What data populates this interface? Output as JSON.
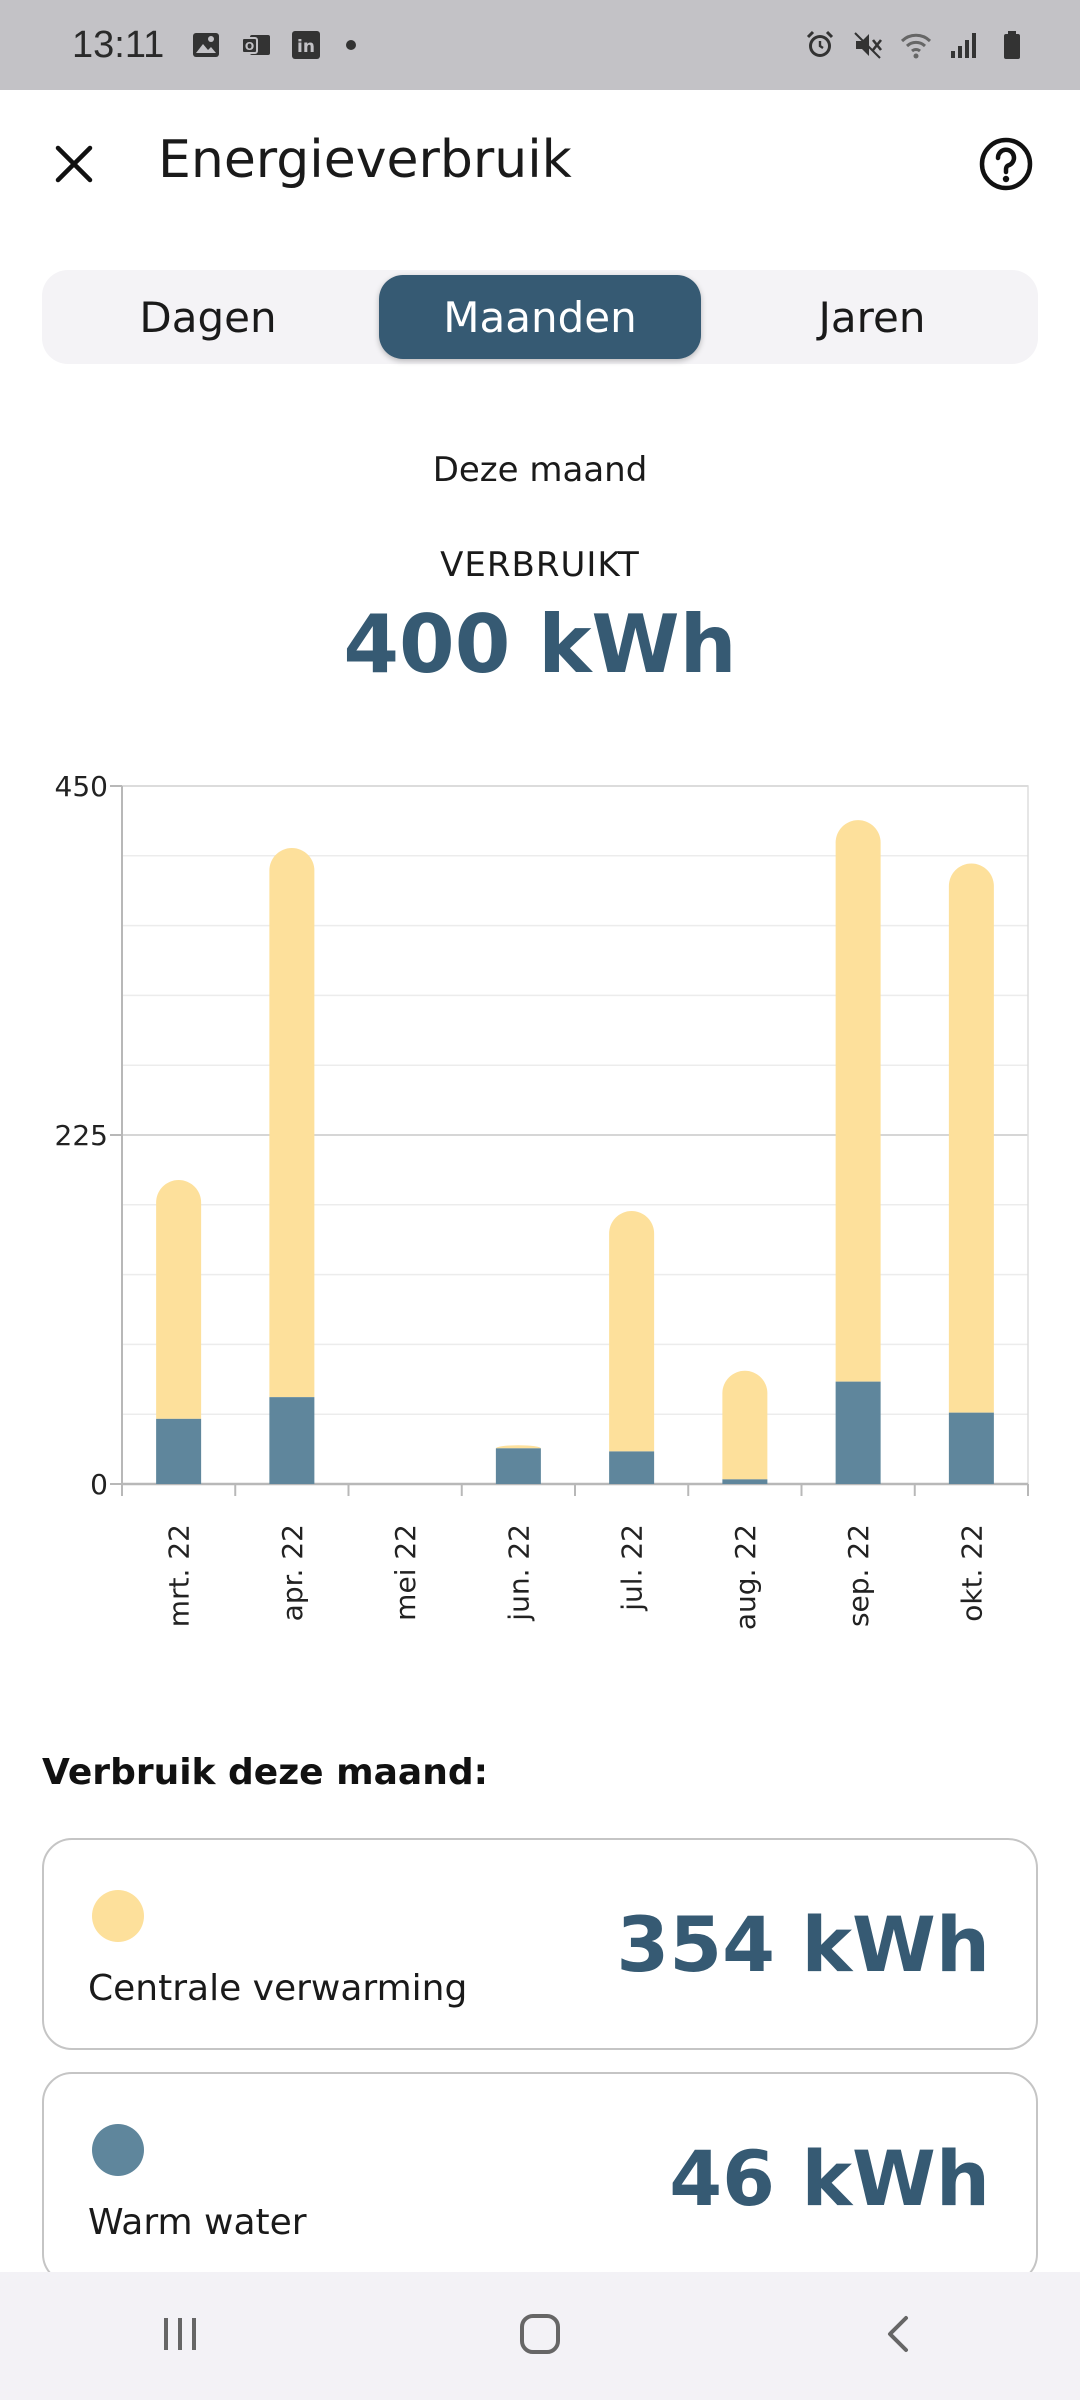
{
  "status_bar": {
    "time": "13:11",
    "left_icons": [
      "image-icon",
      "outlook-icon",
      "linkedin-icon",
      "notification-dot"
    ],
    "right_icons": [
      "alarm-icon",
      "mute-icon",
      "wifi-icon",
      "signal-icon",
      "battery-icon"
    ]
  },
  "header": {
    "title": "Energieverbruik",
    "close_icon": "close-icon",
    "help_icon": "help-icon"
  },
  "tabs": [
    {
      "label": "Dagen",
      "active": false
    },
    {
      "label": "Maanden",
      "active": true
    },
    {
      "label": "Jaren",
      "active": false
    }
  ],
  "summary": {
    "period": "Deze maand",
    "label": "VERBRUIKT",
    "value": "400 kWh"
  },
  "colors": {
    "primary": "#365a73",
    "heating": "#fde09b",
    "warm_water": "#5f869c"
  },
  "chart_data": {
    "type": "bar",
    "stacked": true,
    "categories": [
      "mrt. 22",
      "apr. 22",
      "mei 22",
      "jun. 22",
      "jul. 22",
      "aug. 22",
      "sep. 22",
      "okt. 22"
    ],
    "series": [
      {
        "key": "warm_water",
        "values": [
          42,
          56,
          0,
          23,
          21,
          3,
          66,
          46
        ]
      },
      {
        "key": "heating",
        "values": [
          154,
          354,
          0,
          2,
          155,
          70,
          362,
          354
        ]
      }
    ],
    "yticks": [
      "0",
      "225",
      "450"
    ],
    "ylim": [
      0,
      450
    ],
    "grid": true
  },
  "breakdown": {
    "title": "Verbruik deze maand:",
    "items": [
      {
        "label": "Centrale verwarming",
        "value": "354 kWh",
        "color": "#fde09b"
      },
      {
        "label": "Warm water",
        "value": "46 kWh",
        "color": "#5f869c"
      }
    ]
  },
  "nav": {
    "icons": [
      "recent-apps-icon",
      "home-icon",
      "back-icon"
    ]
  }
}
